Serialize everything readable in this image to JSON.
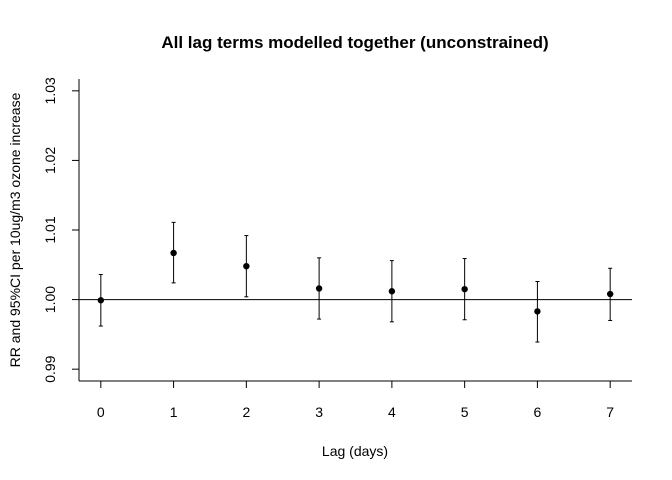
{
  "chart_data": {
    "type": "scatter",
    "title": "All lag terms modelled together (unconstrained)",
    "xlabel": "Lag (days)",
    "ylabel": "RR and 95%CI per 10ug/m3 ozone increase",
    "x_ticks": [
      "0",
      "1",
      "2",
      "3",
      "4",
      "5",
      "6",
      "7"
    ],
    "y_ticks": [
      "0.99",
      "1.00",
      "1.01",
      "1.02",
      "1.03"
    ],
    "xlim": [
      -0.3,
      7.3
    ],
    "ylim": [
      0.9883,
      1.0317
    ],
    "reference_line": 1.0,
    "grid": false,
    "points": [
      {
        "lag": 0,
        "rr": 0.9999,
        "lower": 0.9962,
        "upper": 1.0036
      },
      {
        "lag": 1,
        "rr": 1.0067,
        "lower": 1.0024,
        "upper": 1.0111
      },
      {
        "lag": 2,
        "rr": 1.0048,
        "lower": 1.0004,
        "upper": 1.0092
      },
      {
        "lag": 3,
        "rr": 1.0016,
        "lower": 0.9972,
        "upper": 1.006
      },
      {
        "lag": 4,
        "rr": 1.0012,
        "lower": 0.9968,
        "upper": 1.0056
      },
      {
        "lag": 5,
        "rr": 1.0015,
        "lower": 0.9971,
        "upper": 1.0059
      },
      {
        "lag": 6,
        "rr": 0.9983,
        "lower": 0.9939,
        "upper": 1.0026
      },
      {
        "lag": 7,
        "rr": 1.0008,
        "lower": 0.997,
        "upper": 1.0045
      }
    ]
  }
}
